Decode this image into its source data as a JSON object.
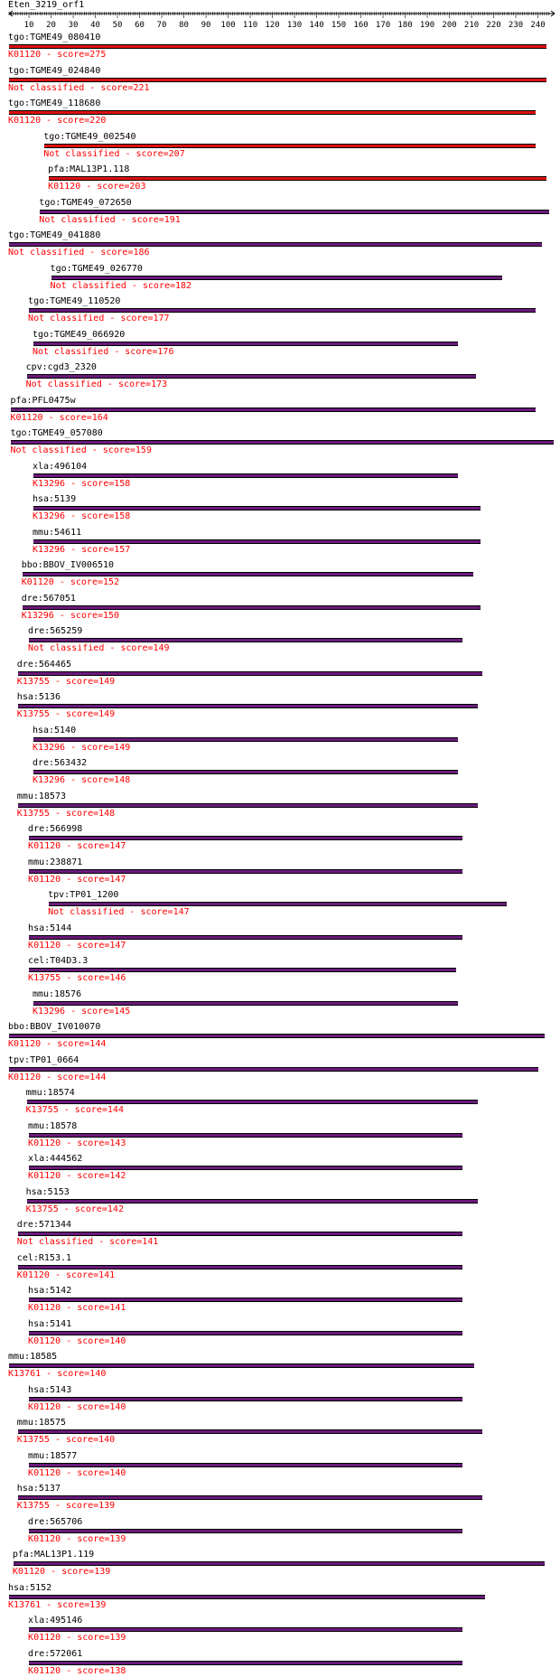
{
  "title": "Eten_3219_orf1",
  "axis": {
    "min": 1,
    "max": 245,
    "ticks": [
      10,
      20,
      30,
      40,
      50,
      60,
      70,
      80,
      90,
      100,
      110,
      120,
      130,
      140,
      150,
      160,
      170,
      180,
      190,
      200,
      210,
      220,
      230,
      240
    ]
  },
  "colors": {
    "red": "#dd1111",
    "purple": "#6a1a7a",
    "label": "#ff0000"
  },
  "hits": [
    {
      "name": "tgo:TGME49_080410",
      "label": "K01120 - score=275",
      "start": 1,
      "end": 244,
      "color": "red"
    },
    {
      "name": "tgo:TGME49_024840",
      "label": "Not classified - score=221",
      "start": 1,
      "end": 244,
      "color": "red"
    },
    {
      "name": "tgo:TGME49_118680",
      "label": "K01120 - score=220",
      "start": 1,
      "end": 239,
      "color": "red"
    },
    {
      "name": "tgo:TGME49_002540",
      "label": "Not classified - score=207",
      "start": 17,
      "end": 239,
      "color": "red"
    },
    {
      "name": "pfa:MAL13P1.118",
      "label": "K01120 - score=203",
      "start": 19,
      "end": 244,
      "color": "red"
    },
    {
      "name": "tgo:TGME49_072650",
      "label": "Not classified - score=191",
      "start": 15,
      "end": 245,
      "color": "purple"
    },
    {
      "name": "tgo:TGME49_041880",
      "label": "Not classified - score=186",
      "start": 1,
      "end": 242,
      "color": "purple"
    },
    {
      "name": "tgo:TGME49_026770",
      "label": "Not classified - score=182",
      "start": 20,
      "end": 224,
      "color": "purple"
    },
    {
      "name": "tgo:TGME49_110520",
      "label": "Not classified - score=177",
      "start": 10,
      "end": 239,
      "color": "purple"
    },
    {
      "name": "tgo:TGME49_066920",
      "label": "Not classified - score=176",
      "start": 12,
      "end": 204,
      "color": "purple"
    },
    {
      "name": "cpv:cgd3_2320",
      "label": "Not classified - score=173",
      "start": 9,
      "end": 212,
      "color": "purple"
    },
    {
      "name": "pfa:PFL0475w",
      "label": "K01120 - score=164",
      "start": 2,
      "end": 239,
      "color": "purple"
    },
    {
      "name": "tgo:TGME49_057080",
      "label": "Not classified - score=159",
      "start": 2,
      "end": 247,
      "color": "purple"
    },
    {
      "name": "xla:496104",
      "label": "K13296 - score=158",
      "start": 12,
      "end": 204,
      "color": "purple"
    },
    {
      "name": "hsa:5139",
      "label": "K13296 - score=158",
      "start": 12,
      "end": 214,
      "color": "purple"
    },
    {
      "name": "mmu:54611",
      "label": "K13296 - score=157",
      "start": 12,
      "end": 214,
      "color": "purple"
    },
    {
      "name": "bbo:BBOV_IV006510",
      "label": "K01120 - score=152",
      "start": 7,
      "end": 211,
      "color": "purple"
    },
    {
      "name": "dre:567051",
      "label": "K13296 - score=150",
      "start": 7,
      "end": 214,
      "color": "purple"
    },
    {
      "name": "dre:565259",
      "label": "Not classified - score=149",
      "start": 10,
      "end": 206,
      "color": "purple"
    },
    {
      "name": "dre:564465",
      "label": "K13755 - score=149",
      "start": 5,
      "end": 215,
      "color": "purple"
    },
    {
      "name": "hsa:5136",
      "label": "K13755 - score=149",
      "start": 5,
      "end": 213,
      "color": "purple"
    },
    {
      "name": "hsa:5140",
      "label": "K13296 - score=149",
      "start": 12,
      "end": 204,
      "color": "purple"
    },
    {
      "name": "dre:563432",
      "label": "K13296 - score=148",
      "start": 12,
      "end": 204,
      "color": "purple"
    },
    {
      "name": "mmu:18573",
      "label": "K13755 - score=148",
      "start": 5,
      "end": 213,
      "color": "purple"
    },
    {
      "name": "dre:566998",
      "label": "K01120 - score=147",
      "start": 10,
      "end": 206,
      "color": "purple"
    },
    {
      "name": "mmu:238871",
      "label": "K01120 - score=147",
      "start": 10,
      "end": 206,
      "color": "purple"
    },
    {
      "name": "tpv:TP01_1200",
      "label": "Not classified - score=147",
      "start": 19,
      "end": 226,
      "color": "purple"
    },
    {
      "name": "hsa:5144",
      "label": "K01120 - score=147",
      "start": 10,
      "end": 206,
      "color": "purple"
    },
    {
      "name": "cel:T04D3.3",
      "label": "K13755 - score=146",
      "start": 10,
      "end": 203,
      "color": "purple"
    },
    {
      "name": "mmu:18576",
      "label": "K13296 - score=145",
      "start": 12,
      "end": 204,
      "color": "purple"
    },
    {
      "name": "bbo:BBOV_IV010070",
      "label": "K01120 - score=144",
      "start": 1,
      "end": 243,
      "color": "purple"
    },
    {
      "name": "tpv:TP01_0664",
      "label": "K01120 - score=144",
      "start": 1,
      "end": 240,
      "color": "purple"
    },
    {
      "name": "mmu:18574",
      "label": "K13755 - score=144",
      "start": 9,
      "end": 213,
      "color": "purple"
    },
    {
      "name": "mmu:18578",
      "label": "K01120 - score=143",
      "start": 10,
      "end": 206,
      "color": "purple"
    },
    {
      "name": "xla:444562",
      "label": "K01120 - score=142",
      "start": 10,
      "end": 206,
      "color": "purple"
    },
    {
      "name": "hsa:5153",
      "label": "K13755 - score=142",
      "start": 9,
      "end": 213,
      "color": "purple"
    },
    {
      "name": "dre:571344",
      "label": "Not classified - score=141",
      "start": 5,
      "end": 206,
      "color": "purple"
    },
    {
      "name": "cel:R153.1",
      "label": "K01120 - score=141",
      "start": 5,
      "end": 206,
      "color": "purple"
    },
    {
      "name": "hsa:5142",
      "label": "K01120 - score=141",
      "start": 10,
      "end": 206,
      "color": "purple"
    },
    {
      "name": "hsa:5141",
      "label": "K01120 - score=140",
      "start": 10,
      "end": 206,
      "color": "purple"
    },
    {
      "name": "mmu:18585",
      "label": "K13761 - score=140",
      "start": 1,
      "end": 211,
      "color": "purple"
    },
    {
      "name": "hsa:5143",
      "label": "K01120 - score=140",
      "start": 10,
      "end": 206,
      "color": "purple"
    },
    {
      "name": "mmu:18575",
      "label": "K13755 - score=140",
      "start": 5,
      "end": 215,
      "color": "purple"
    },
    {
      "name": "mmu:18577",
      "label": "K01120 - score=140",
      "start": 10,
      "end": 206,
      "color": "purple"
    },
    {
      "name": "hsa:5137",
      "label": "K13755 - score=139",
      "start": 5,
      "end": 215,
      "color": "purple"
    },
    {
      "name": "dre:565706",
      "label": "K01120 - score=139",
      "start": 10,
      "end": 206,
      "color": "purple"
    },
    {
      "name": "pfa:MAL13P1.119",
      "label": "K01120 - score=139",
      "start": 3,
      "end": 243,
      "color": "purple"
    },
    {
      "name": "hsa:5152",
      "label": "K13761 - score=139",
      "start": 1,
      "end": 216,
      "color": "purple"
    },
    {
      "name": "xla:495146",
      "label": "K01120 - score=139",
      "start": 10,
      "end": 206,
      "color": "purple"
    },
    {
      "name": "dre:572061",
      "label": "K01120 - score=138",
      "start": 10,
      "end": 206,
      "color": "purple"
    }
  ]
}
